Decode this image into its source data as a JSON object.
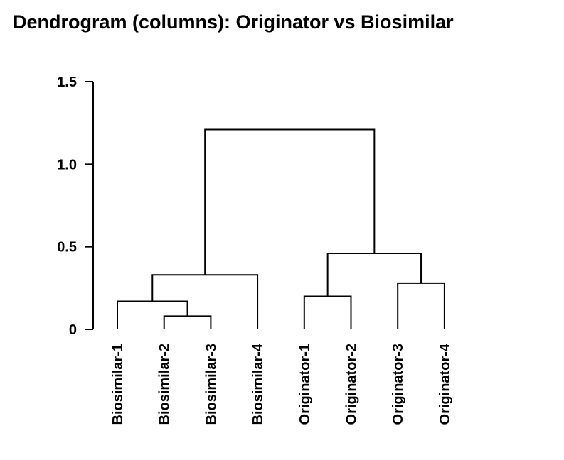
{
  "chart_data": {
    "type": "dendrogram",
    "title": "Dendrogram (columns): Originator vs Biosimilar",
    "ylim": [
      0,
      1.5
    ],
    "y_ticks": [
      {
        "value": 0,
        "label": "0"
      },
      {
        "value": 0.5,
        "label": "0.5"
      },
      {
        "value": 1.0,
        "label": "1.0"
      },
      {
        "value": 1.5,
        "label": "1.5"
      }
    ],
    "leaves": [
      "Biosimilar-1",
      "Biosimilar-2",
      "Biosimilar-3",
      "Biosimilar-4",
      "Originator-1",
      "Originator-2",
      "Originator-3",
      "Originator-4"
    ],
    "merges": [
      {
        "left": "Biosimilar-2",
        "right": "Biosimilar-3",
        "height": 0.08
      },
      {
        "left": "Biosimilar-1",
        "right": "Biosimilar-2 + Biosimilar-3",
        "height": 0.17
      },
      {
        "left": "Biosimilar-1 + Biosimilar-2 + Biosimilar-3",
        "right": "Biosimilar-4",
        "height": 0.33
      },
      {
        "left": "Originator-1",
        "right": "Originator-2",
        "height": 0.2
      },
      {
        "left": "Originator-3",
        "right": "Originator-4",
        "height": 0.28
      },
      {
        "left": "Originator-1 + Originator-2",
        "right": "Originator-3 + Originator-4",
        "height": 0.46
      },
      {
        "left": "Biosimilars",
        "right": "Originators",
        "height": 1.21
      }
    ],
    "grid": false,
    "legend": "none"
  }
}
